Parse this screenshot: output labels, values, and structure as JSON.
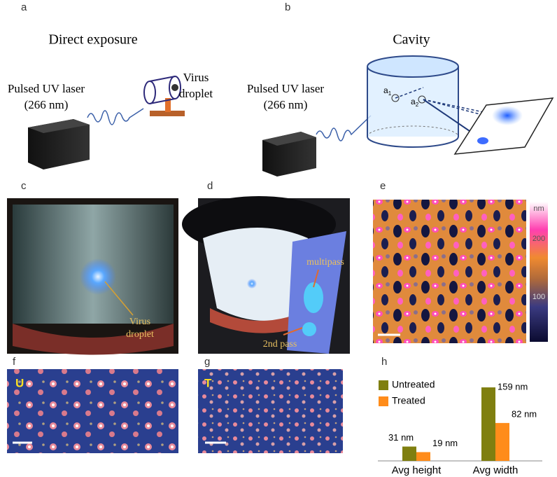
{
  "panels": {
    "a": {
      "label": "a",
      "title": "Direct exposure",
      "laser": [
        "Pulsed UV laser",
        "(266 nm)"
      ],
      "target": [
        "Virus",
        "droplet"
      ]
    },
    "b": {
      "label": "b",
      "title": "Cavity",
      "laser": [
        "Pulsed UV laser",
        "(266 nm)"
      ],
      "point1": {
        "base": "a",
        "sub": "1"
      },
      "point2": {
        "base": "a",
        "sub": "2"
      }
    },
    "c": {
      "label": "c",
      "annotation": [
        "Virus",
        "droplet"
      ]
    },
    "d": {
      "label": "d",
      "annotations": [
        "multipass",
        "2nd pass"
      ]
    },
    "e": {
      "label": "e",
      "colorbar_unit": "nm",
      "colorbar_ticks": [
        "200",
        "100"
      ]
    },
    "f": {
      "label": "f",
      "tag": "U"
    },
    "g": {
      "label": "g",
      "tag": "T"
    },
    "h": {
      "label": "h"
    }
  },
  "chart_data": {
    "type": "bar",
    "categories": [
      "Avg height",
      "Avg width"
    ],
    "series": [
      {
        "name": "Untreated",
        "color": "#7f7f10",
        "values": [
          31,
          159
        ],
        "value_labels": [
          "31 nm",
          "159 nm"
        ]
      },
      {
        "name": "Treated",
        "color": "#ff8c1a",
        "values": [
          19,
          82
        ],
        "value_labels": [
          "19 nm",
          "82 nm"
        ]
      }
    ]
  }
}
